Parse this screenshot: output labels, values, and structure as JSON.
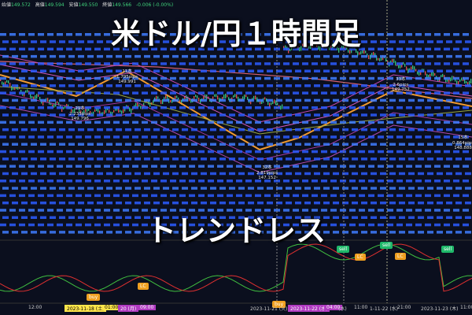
{
  "header": {
    "open_label": "始値",
    "open": "149.572",
    "high_label": "高値",
    "high": "149.594",
    "low_label": "安値",
    "low": "149.550",
    "close_label": "終値",
    "close": "149.566",
    "change": "-0.006 (-0.00%)"
  },
  "title": "米ドル/円１時間足",
  "subtitle": "トレンドレス",
  "annotations": [
    {
      "bars": "29本",
      "pips": "2.235pips",
      "price": "149.796"
    },
    {
      "bars": "11本",
      "pips": "1.795pips",
      "price": "149.991"
    },
    {
      "bars": "32本",
      "pips": "2.819pips",
      "price": "147.152"
    },
    {
      "bars": "33本",
      "pips": "2.6pips",
      "price": "149.752"
    },
    {
      "bars": "15本",
      "pips": "0.864pips",
      "price": "148.888"
    }
  ],
  "signals": [
    "buy",
    "LC",
    "buy",
    "sell",
    "LC",
    "sell",
    "LC",
    "sell"
  ],
  "time_labels": [
    "12:00",
    "2023-11-18 (土)",
    "01:00",
    "20 (月)",
    "09:00",
    "2023-11-21 (火)",
    "2023-11-22 (水)",
    "04:00",
    "(水)",
    "11:00",
    "1-11-22 (水)",
    "21:00",
    "2023-11-23 (木)",
    "11:00"
  ]
}
